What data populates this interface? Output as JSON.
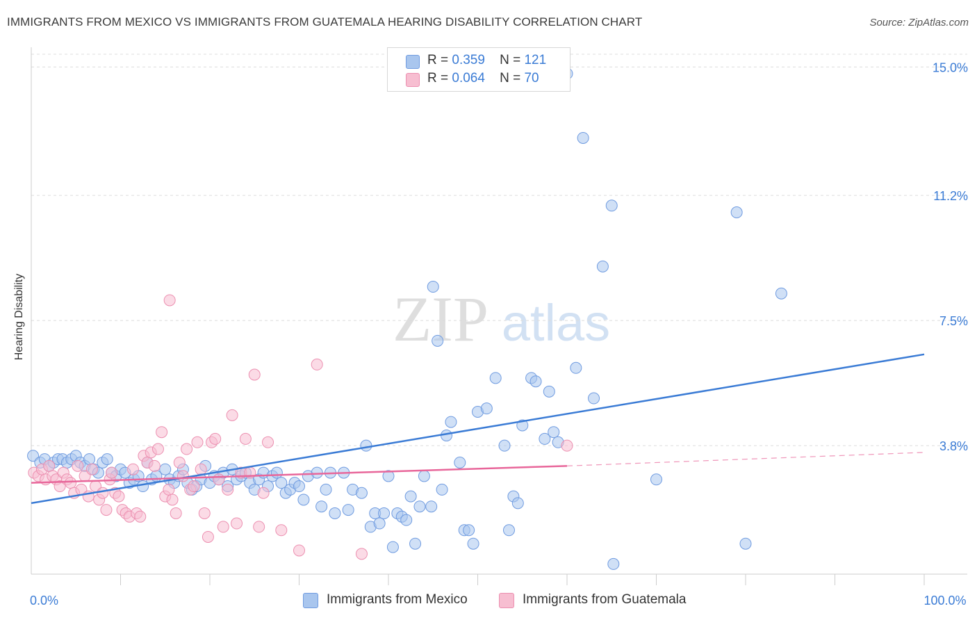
{
  "title": "IMMIGRANTS FROM MEXICO VS IMMIGRANTS FROM GUATEMALA HEARING DISABILITY CORRELATION CHART",
  "source": "Source: ZipAtlas.com",
  "watermark": {
    "zip": "ZIP",
    "atlas": "atlas"
  },
  "legend": {
    "rows": [
      {
        "r_label": "R =",
        "r_value": "0.359",
        "n_label": "N =",
        "n_value": "121",
        "color": "#a9c6ee",
        "border": "#6f9be0"
      },
      {
        "r_label": "R =",
        "r_value": "0.064",
        "n_label": "N =",
        "n_value": "70",
        "color": "#f7bed1",
        "border": "#ec8fb0"
      }
    ]
  },
  "chart_data": {
    "type": "scatter",
    "title": "IMMIGRANTS FROM MEXICO VS IMMIGRANTS FROM GUATEMALA HEARING DISABILITY CORRELATION CHART",
    "xlabel": "",
    "ylabel": "Hearing Disability",
    "xlim": [
      0,
      100
    ],
    "ylim": [
      0,
      15.5
    ],
    "x_tick_labels": [
      {
        "value": 0,
        "label": "0.0%"
      },
      {
        "value": 100,
        "label": "100.0%"
      }
    ],
    "y_tick_labels": [
      {
        "value": 3.8,
        "label": "3.8%"
      },
      {
        "value": 7.5,
        "label": "7.5%"
      },
      {
        "value": 11.2,
        "label": "11.2%"
      },
      {
        "value": 15.0,
        "label": "15.0%"
      }
    ],
    "grid": true,
    "series": [
      {
        "name": "Immigrants from Mexico",
        "color": "#a9c6ee",
        "stroke": "#6f9be0",
        "line_color": "#3a7bd5",
        "trend": {
          "x0": 0,
          "y0": 2.1,
          "x1": 100,
          "y1": 6.5
        },
        "points": [
          [
            0.2,
            3.5
          ],
          [
            1,
            3.3
          ],
          [
            1.5,
            3.4
          ],
          [
            2,
            3.2
          ],
          [
            2.5,
            3.3
          ],
          [
            3,
            3.4
          ],
          [
            3.5,
            3.4
          ],
          [
            4,
            3.3
          ],
          [
            4.5,
            3.4
          ],
          [
            5,
            3.5
          ],
          [
            5.5,
            3.3
          ],
          [
            6,
            3.2
          ],
          [
            6.5,
            3.4
          ],
          [
            7,
            3.1
          ],
          [
            7.5,
            3.0
          ],
          [
            8,
            3.3
          ],
          [
            8.5,
            3.4
          ],
          [
            9,
            3.0
          ],
          [
            9.5,
            2.9
          ],
          [
            10,
            3.1
          ],
          [
            10.5,
            3.0
          ],
          [
            11,
            2.7
          ],
          [
            11.5,
            2.8
          ],
          [
            12,
            2.9
          ],
          [
            12.5,
            2.6
          ],
          [
            13,
            3.3
          ],
          [
            13.5,
            2.8
          ],
          [
            14,
            2.9
          ],
          [
            15,
            3.1
          ],
          [
            15.5,
            2.8
          ],
          [
            16,
            2.7
          ],
          [
            16.5,
            2.9
          ],
          [
            17,
            3.1
          ],
          [
            17.5,
            2.7
          ],
          [
            18,
            2.5
          ],
          [
            18.5,
            2.6
          ],
          [
            19,
            2.8
          ],
          [
            19.5,
            3.2
          ],
          [
            20,
            2.7
          ],
          [
            20.5,
            2.9
          ],
          [
            21,
            2.8
          ],
          [
            21.5,
            3.0
          ],
          [
            22,
            2.6
          ],
          [
            22.5,
            3.1
          ],
          [
            23,
            2.8
          ],
          [
            23.5,
            2.9
          ],
          [
            24,
            3.0
          ],
          [
            24.5,
            2.7
          ],
          [
            25,
            2.5
          ],
          [
            25.5,
            2.8
          ],
          [
            26,
            3.0
          ],
          [
            26.5,
            2.6
          ],
          [
            27,
            2.9
          ],
          [
            27.5,
            3.0
          ],
          [
            28,
            2.7
          ],
          [
            28.5,
            2.4
          ],
          [
            29,
            2.5
          ],
          [
            29.5,
            2.7
          ],
          [
            30,
            2.6
          ],
          [
            30.5,
            2.2
          ],
          [
            31,
            2.9
          ],
          [
            32,
            3.0
          ],
          [
            32.5,
            2.0
          ],
          [
            33,
            2.5
          ],
          [
            33.5,
            3.0
          ],
          [
            34,
            1.8
          ],
          [
            35,
            3.0
          ],
          [
            35.5,
            1.9
          ],
          [
            36,
            2.5
          ],
          [
            37,
            2.4
          ],
          [
            37.5,
            3.8
          ],
          [
            38,
            1.4
          ],
          [
            38.5,
            1.8
          ],
          [
            39,
            1.5
          ],
          [
            39.5,
            1.8
          ],
          [
            40,
            2.9
          ],
          [
            40.5,
            0.8
          ],
          [
            41,
            1.8
          ],
          [
            41.5,
            1.7
          ],
          [
            42,
            1.6
          ],
          [
            42.5,
            2.3
          ],
          [
            43,
            0.9
          ],
          [
            43.5,
            2.0
          ],
          [
            44,
            2.9
          ],
          [
            44.8,
            2.0
          ],
          [
            45,
            8.5
          ],
          [
            45.5,
            6.9
          ],
          [
            46,
            2.5
          ],
          [
            46.5,
            4.1
          ],
          [
            47,
            4.5
          ],
          [
            48,
            3.3
          ],
          [
            48.5,
            1.3
          ],
          [
            49,
            1.3
          ],
          [
            49.5,
            0.9
          ],
          [
            50,
            4.8
          ],
          [
            51,
            4.9
          ],
          [
            52,
            5.8
          ],
          [
            53,
            3.8
          ],
          [
            53.5,
            1.3
          ],
          [
            54,
            2.3
          ],
          [
            54.5,
            2.1
          ],
          [
            55,
            4.4
          ],
          [
            56,
            5.8
          ],
          [
            56.5,
            5.7
          ],
          [
            57.5,
            4.0
          ],
          [
            58,
            5.4
          ],
          [
            58.5,
            4.2
          ],
          [
            59,
            3.9
          ],
          [
            60,
            14.8
          ],
          [
            61,
            6.1
          ],
          [
            61.8,
            12.9
          ],
          [
            63,
            5.2
          ],
          [
            64,
            9.1
          ],
          [
            65,
            10.9
          ],
          [
            65.2,
            0.3
          ],
          [
            70,
            2.8
          ],
          [
            79,
            10.7
          ],
          [
            80,
            0.9
          ],
          [
            84,
            8.3
          ]
        ]
      },
      {
        "name": "Immigrants from Guatemala",
        "color": "#f7bed1",
        "stroke": "#ec8fb0",
        "line_color": "#e8669a",
        "trend": {
          "x0": 0,
          "y0": 2.7,
          "x1": 60,
          "y1": 3.2
        },
        "trend_dashed": {
          "x0": 60,
          "y0": 3.2,
          "x1": 100,
          "y1": 3.6
        },
        "points": [
          [
            0.3,
            3.0
          ],
          [
            0.8,
            2.9
          ],
          [
            1.2,
            3.1
          ],
          [
            1.6,
            2.8
          ],
          [
            2,
            3.2
          ],
          [
            2.4,
            2.9
          ],
          [
            2.8,
            2.8
          ],
          [
            3.2,
            2.6
          ],
          [
            3.6,
            3.0
          ],
          [
            4,
            2.8
          ],
          [
            4.4,
            2.7
          ],
          [
            4.8,
            2.4
          ],
          [
            5.2,
            3.2
          ],
          [
            5.6,
            2.5
          ],
          [
            6,
            2.9
          ],
          [
            6.4,
            2.3
          ],
          [
            6.8,
            3.1
          ],
          [
            7.2,
            2.6
          ],
          [
            7.6,
            2.2
          ],
          [
            8,
            2.4
          ],
          [
            8.4,
            1.9
          ],
          [
            8.8,
            2.8
          ],
          [
            9,
            3.0
          ],
          [
            9.4,
            2.4
          ],
          [
            9.8,
            2.3
          ],
          [
            10.2,
            1.9
          ],
          [
            10.6,
            1.8
          ],
          [
            11,
            1.7
          ],
          [
            11.4,
            3.1
          ],
          [
            11.8,
            1.8
          ],
          [
            12.2,
            1.7
          ],
          [
            12.6,
            3.5
          ],
          [
            13,
            3.3
          ],
          [
            13.4,
            3.6
          ],
          [
            13.8,
            3.2
          ],
          [
            14.2,
            3.7
          ],
          [
            14.6,
            4.2
          ],
          [
            15,
            2.3
          ],
          [
            15.4,
            2.5
          ],
          [
            15.8,
            2.2
          ],
          [
            16.2,
            1.8
          ],
          [
            16.6,
            3.3
          ],
          [
            17,
            2.9
          ],
          [
            17.4,
            3.7
          ],
          [
            17.8,
            2.5
          ],
          [
            18.2,
            2.6
          ],
          [
            18.6,
            3.9
          ],
          [
            19,
            3.1
          ],
          [
            19.4,
            1.8
          ],
          [
            19.8,
            1.1
          ],
          [
            20.2,
            3.9
          ],
          [
            20.6,
            4.0
          ],
          [
            21,
            2.8
          ],
          [
            21.5,
            1.4
          ],
          [
            22,
            2.5
          ],
          [
            22.5,
            4.7
          ],
          [
            23,
            1.5
          ],
          [
            23.5,
            3.0
          ],
          [
            24,
            4.0
          ],
          [
            24.5,
            3.0
          ],
          [
            25,
            5.9
          ],
          [
            25.5,
            1.4
          ],
          [
            26,
            2.4
          ],
          [
            26.5,
            3.9
          ],
          [
            28,
            1.3
          ],
          [
            30,
            0.7
          ],
          [
            32,
            6.2
          ],
          [
            37,
            0.6
          ],
          [
            60,
            3.8
          ],
          [
            15.5,
            8.1
          ]
        ]
      }
    ]
  },
  "bottom_legend": [
    "Immigrants from Mexico",
    "Immigrants from Guatemala"
  ]
}
